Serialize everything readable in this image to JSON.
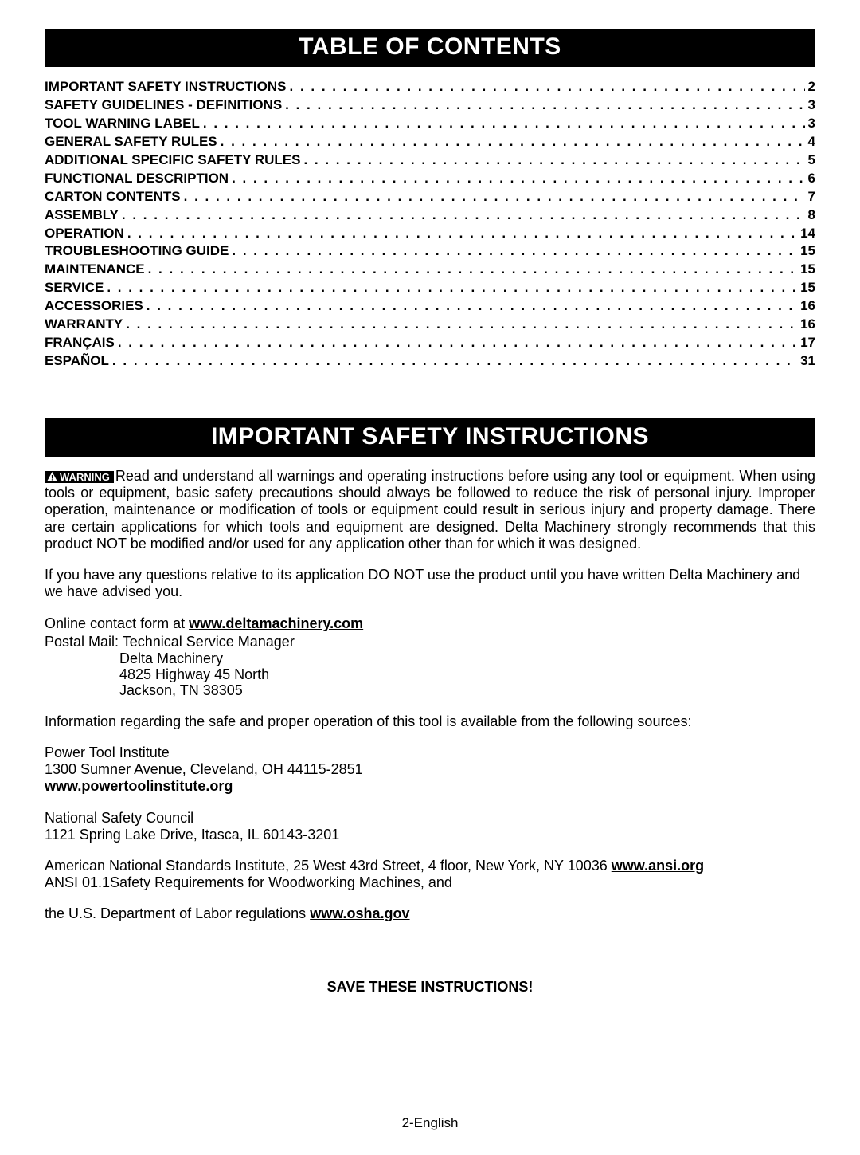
{
  "colors": {
    "header_bg": "#000000",
    "header_text": "#ffffff",
    "body_text": "#000000",
    "page_bg": "#ffffff"
  },
  "typography": {
    "header_fontsize_pt": 22,
    "toc_fontsize_pt": 13,
    "body_fontsize_pt": 13,
    "font_family": "Arial"
  },
  "headers": {
    "toc": "TABLE OF CONTENTS",
    "safety": "IMPORTANT SAFETY INSTRUCTIONS"
  },
  "toc": [
    {
      "title": "IMPORTANT SAFETY INSTRUCTIONS",
      "page": "2"
    },
    {
      "title": "SAFETY GUIDELINES - DEFINITIONS",
      "page": "3"
    },
    {
      "title": "TOOL WARNING LABEL",
      "page": "3"
    },
    {
      "title": "GENERAL SAFETY RULES",
      "page": "4"
    },
    {
      "title": "ADDITIONAL SPECIFIC SAFETY RULES",
      "page": "5"
    },
    {
      "title": "FUNCTIONAL DESCRIPTION",
      "page": "6"
    },
    {
      "title": "CARTON CONTENTS",
      "page": "7"
    },
    {
      "title": "ASSEMBLY",
      "page": "8"
    },
    {
      "title": "OPERATION",
      "page": "14"
    },
    {
      "title": "TROUBLESHOOTING GUIDE",
      "page": "15"
    },
    {
      "title": "MAINTENANCE",
      "page": "15"
    },
    {
      "title": "SERVICE",
      "page": "15"
    },
    {
      "title": "ACCESSORIES",
      "page": "16"
    },
    {
      "title": "WARRANTY",
      "page": "16"
    },
    {
      "title": "FRANÇAIS",
      "page": "17"
    },
    {
      "title": "ESPAÑOL",
      "page": "31"
    }
  ],
  "warning_label": "WARNING",
  "para1": "Read and understand all warnings and operating instructions before using any tool or equipment.  When using tools or equipment, basic safety precautions should always be followed to reduce the risk of personal injury. Improper operation, maintenance or modification of tools or equipment could result in serious injury and property damage. There are certain applications for which tools and equipment are designed. Delta Machinery strongly recommends that this product NOT be modified and/or used for any application other than for which it was designed.",
  "para2": "If you have any questions relative to its application DO NOT use the product until you have written Delta Machinery and we have advised you.",
  "online_prefix": "Online contact form at ",
  "online_link": "www.deltamachinery.com",
  "postal_line": "Postal Mail: Technical Service Manager",
  "postal_addr1": "Delta Machinery",
  "postal_addr2": "4825 Highway 45 North",
  "postal_addr3": "Jackson, TN 38305",
  "info_line": "Information regarding the safe and proper operation of this tool is available from the following sources:",
  "pti_line1": "Power Tool Institute",
  "pti_line2": "1300 Sumner Avenue, Cleveland, OH 44115-2851",
  "pti_link": "www.powertoolinstitute.org",
  "nsc_line1": "National Safety Council",
  "nsc_line2": "1121 Spring Lake Drive, Itasca, IL 60143-3201",
  "ansi_prefix": "American National Standards Institute, 25 West 43rd Street, 4 floor, New York, NY 10036 ",
  "ansi_link": "www.ansi.org",
  "ansi_line2": "ANSI 01.1Safety Requirements for Woodworking Machines, and",
  "osha_prefix": "the U.S. Department of Labor regulations ",
  "osha_link": "www.osha.gov",
  "save": "SAVE THESE INSTRUCTIONS!",
  "footer": "2-English"
}
